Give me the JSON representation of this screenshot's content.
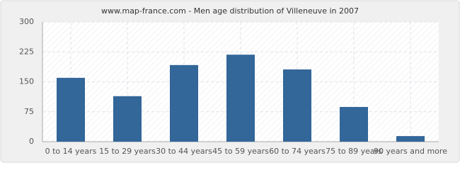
{
  "chart_data": {
    "type": "bar",
    "title": "www.map-france.com - Men age distribution of Villeneuve in 2007",
    "categories": [
      "0 to 14 years",
      "15 to 29 years",
      "30 to 44 years",
      "45 to 59 years",
      "60 to 74 years",
      "75 to 89 years",
      "90 years and more"
    ],
    "values": [
      160,
      114,
      192,
      218,
      181,
      87,
      14
    ],
    "color": "#336699",
    "ylim": [
      0,
      300
    ],
    "yticks": [
      0,
      75,
      150,
      225,
      300
    ],
    "grid": true
  }
}
